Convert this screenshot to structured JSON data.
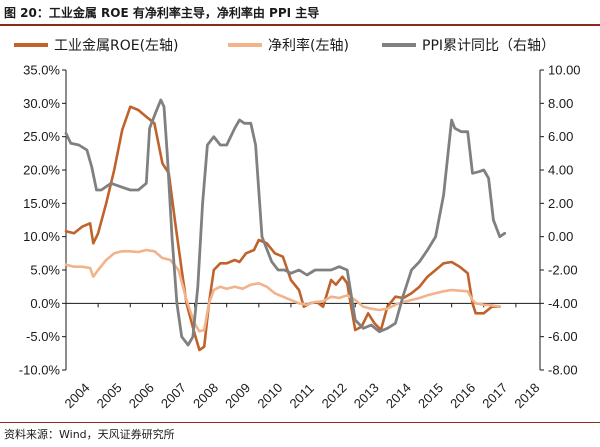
{
  "figure": {
    "title": "图 20：工业金属 ROE 有净利率主导，净利率由 PPI 主导",
    "source": "资料来源：Wind，天风证券研究所"
  },
  "chart_data": {
    "type": "line",
    "title": "",
    "legend_position": "top",
    "grid": false,
    "x_ticks": [
      "2004",
      "2005",
      "2006",
      "2007",
      "2008",
      "2009",
      "2010",
      "2011",
      "2012",
      "2013",
      "2014",
      "2015",
      "2016",
      "2017",
      "2018"
    ],
    "x_range": [
      2004.0,
      2018.75
    ],
    "y_left": {
      "ticks": [
        "35.0%",
        "30.0%",
        "25.0%",
        "20.0%",
        "15.0%",
        "10.0%",
        "5.0%",
        "0.0%",
        "-5.0%",
        "-10.0%"
      ],
      "range": [
        -10,
        35
      ]
    },
    "y_right": {
      "ticks": [
        "10.00",
        "8.00",
        "6.00",
        "4.00",
        "2.00",
        "0.00",
        "-2.00",
        "-4.00",
        "-6.00",
        "-8.00"
      ],
      "range": [
        -8,
        10
      ]
    },
    "series": [
      {
        "name": "工业金属ROE(左轴)",
        "axis": "left",
        "color": "#c0622b",
        "width": 2.6,
        "points": [
          [
            2004.0,
            10.8
          ],
          [
            2004.25,
            10.5
          ],
          [
            2004.5,
            11.5
          ],
          [
            2004.75,
            12.0
          ],
          [
            2004.85,
            9.0
          ],
          [
            2005.0,
            10.5
          ],
          [
            2005.25,
            15.0
          ],
          [
            2005.5,
            20.0
          ],
          [
            2005.75,
            26.0
          ],
          [
            2006.0,
            29.5
          ],
          [
            2006.25,
            29.0
          ],
          [
            2006.5,
            28.0
          ],
          [
            2006.75,
            27.0
          ],
          [
            2007.0,
            21.0
          ],
          [
            2007.2,
            19.5
          ],
          [
            2007.4,
            12.0
          ],
          [
            2007.6,
            5.0
          ],
          [
            2007.75,
            0.0
          ],
          [
            2008.0,
            -4.5
          ],
          [
            2008.15,
            -7.0
          ],
          [
            2008.3,
            -6.5
          ],
          [
            2008.45,
            0.0
          ],
          [
            2008.6,
            5.0
          ],
          [
            2008.8,
            6.0
          ],
          [
            2009.0,
            6.0
          ],
          [
            2009.25,
            6.5
          ],
          [
            2009.4,
            6.2
          ],
          [
            2009.6,
            7.5
          ],
          [
            2009.85,
            8.0
          ],
          [
            2010.0,
            9.5
          ],
          [
            2010.25,
            9.0
          ],
          [
            2010.5,
            7.5
          ],
          [
            2010.75,
            7.0
          ],
          [
            2011.0,
            3.5
          ],
          [
            2011.25,
            2.0
          ],
          [
            2011.4,
            -0.5
          ],
          [
            2011.6,
            0.0
          ],
          [
            2011.8,
            0.2
          ],
          [
            2012.0,
            -0.5
          ],
          [
            2012.25,
            3.5
          ],
          [
            2012.4,
            2.8
          ],
          [
            2012.6,
            4.0
          ],
          [
            2012.75,
            3.0
          ],
          [
            2013.0,
            -4.0
          ],
          [
            2013.2,
            -3.5
          ],
          [
            2013.4,
            -1.5
          ],
          [
            2013.6,
            -3.0
          ],
          [
            2013.8,
            -4.0
          ],
          [
            2014.0,
            -0.5
          ],
          [
            2014.25,
            1.0
          ],
          [
            2014.5,
            0.8
          ],
          [
            2014.75,
            1.5
          ],
          [
            2015.0,
            2.5
          ],
          [
            2015.25,
            4.0
          ],
          [
            2015.5,
            5.0
          ],
          [
            2015.75,
            6.0
          ],
          [
            2016.0,
            6.2
          ],
          [
            2016.25,
            5.5
          ],
          [
            2016.5,
            4.5
          ],
          [
            2016.65,
            0.0
          ],
          [
            2016.75,
            -1.5
          ],
          [
            2017.0,
            -1.5
          ],
          [
            2017.25,
            -0.5
          ],
          [
            2017.5,
            -0.5
          ]
        ]
      },
      {
        "name": "净利率(左轴)",
        "axis": "left",
        "color": "#f2b38c",
        "width": 2.6,
        "points": [
          [
            2004.0,
            5.8
          ],
          [
            2004.25,
            5.5
          ],
          [
            2004.5,
            5.5
          ],
          [
            2004.75,
            5.3
          ],
          [
            2004.85,
            4.0
          ],
          [
            2005.0,
            5.0
          ],
          [
            2005.25,
            6.5
          ],
          [
            2005.5,
            7.5
          ],
          [
            2005.75,
            7.8
          ],
          [
            2006.0,
            7.8
          ],
          [
            2006.25,
            7.7
          ],
          [
            2006.5,
            8.0
          ],
          [
            2006.75,
            7.8
          ],
          [
            2007.0,
            6.8
          ],
          [
            2007.25,
            6.5
          ],
          [
            2007.5,
            5.0
          ],
          [
            2007.75,
            0.5
          ],
          [
            2008.0,
            -3.0
          ],
          [
            2008.15,
            -4.2
          ],
          [
            2008.3,
            -4.0
          ],
          [
            2008.45,
            0.0
          ],
          [
            2008.6,
            2.0
          ],
          [
            2008.8,
            2.5
          ],
          [
            2009.0,
            2.2
          ],
          [
            2009.25,
            2.5
          ],
          [
            2009.5,
            2.2
          ],
          [
            2009.75,
            2.8
          ],
          [
            2010.0,
            3.0
          ],
          [
            2010.25,
            2.5
          ],
          [
            2010.5,
            1.5
          ],
          [
            2010.75,
            1.0
          ],
          [
            2011.0,
            0.5
          ],
          [
            2011.25,
            0.0
          ],
          [
            2011.5,
            -0.2
          ],
          [
            2011.75,
            0.2
          ],
          [
            2012.0,
            0.3
          ],
          [
            2012.25,
            1.0
          ],
          [
            2012.5,
            0.8
          ],
          [
            2012.75,
            1.2
          ],
          [
            2013.0,
            0.5
          ],
          [
            2013.25,
            -0.5
          ],
          [
            2013.5,
            -0.8
          ],
          [
            2013.75,
            -1.0
          ],
          [
            2014.0,
            -0.8
          ],
          [
            2014.25,
            -0.2
          ],
          [
            2014.5,
            0.2
          ],
          [
            2014.75,
            0.5
          ],
          [
            2015.0,
            0.8
          ],
          [
            2015.25,
            1.2
          ],
          [
            2015.5,
            1.5
          ],
          [
            2015.75,
            1.8
          ],
          [
            2016.0,
            2.0
          ],
          [
            2016.25,
            1.9
          ],
          [
            2016.5,
            1.8
          ],
          [
            2016.65,
            0.5
          ],
          [
            2016.75,
            0.0
          ],
          [
            2017.0,
            -0.2
          ],
          [
            2017.25,
            -0.3
          ],
          [
            2017.5,
            -0.5
          ]
        ]
      },
      {
        "name": "PPI累计同比（右轴）",
        "axis": "right",
        "color": "#808080",
        "width": 2.8,
        "points": [
          [
            2004.0,
            6.2
          ],
          [
            2004.15,
            5.6
          ],
          [
            2004.4,
            5.5
          ],
          [
            2004.65,
            5.2
          ],
          [
            2004.8,
            4.2
          ],
          [
            2004.95,
            2.8
          ],
          [
            2005.1,
            2.8
          ],
          [
            2005.4,
            3.2
          ],
          [
            2005.7,
            3.0
          ],
          [
            2006.0,
            2.8
          ],
          [
            2006.25,
            2.8
          ],
          [
            2006.5,
            3.2
          ],
          [
            2006.6,
            6.5
          ],
          [
            2006.8,
            7.5
          ],
          [
            2006.95,
            8.2
          ],
          [
            2007.05,
            7.8
          ],
          [
            2007.15,
            5.0
          ],
          [
            2007.3,
            0.0
          ],
          [
            2007.45,
            -4.0
          ],
          [
            2007.6,
            -6.0
          ],
          [
            2007.8,
            -6.5
          ],
          [
            2007.95,
            -6.0
          ],
          [
            2008.1,
            -3.0
          ],
          [
            2008.25,
            2.0
          ],
          [
            2008.4,
            5.5
          ],
          [
            2008.6,
            6.0
          ],
          [
            2008.8,
            5.5
          ],
          [
            2009.0,
            5.5
          ],
          [
            2009.25,
            6.5
          ],
          [
            2009.4,
            7.0
          ],
          [
            2009.55,
            6.8
          ],
          [
            2009.75,
            6.8
          ],
          [
            2009.9,
            5.5
          ],
          [
            2010.1,
            0.0
          ],
          [
            2010.4,
            -1.5
          ],
          [
            2010.6,
            -2.0
          ],
          [
            2010.8,
            -2.0
          ],
          [
            2011.0,
            -2.2
          ],
          [
            2011.25,
            -2.0
          ],
          [
            2011.5,
            -2.3
          ],
          [
            2011.75,
            -2.0
          ],
          [
            2012.0,
            -2.0
          ],
          [
            2012.25,
            -2.0
          ],
          [
            2012.5,
            -1.8
          ],
          [
            2012.75,
            -2.0
          ],
          [
            2013.0,
            -5.0
          ],
          [
            2013.25,
            -5.5
          ],
          [
            2013.5,
            -5.3
          ],
          [
            2013.75,
            -5.7
          ],
          [
            2014.0,
            -5.5
          ],
          [
            2014.25,
            -5.2
          ],
          [
            2014.5,
            -3.5
          ],
          [
            2014.75,
            -2.0
          ],
          [
            2015.0,
            -1.5
          ],
          [
            2015.25,
            -0.8
          ],
          [
            2015.5,
            0.0
          ],
          [
            2015.75,
            2.5
          ],
          [
            2016.0,
            7.0
          ],
          [
            2016.1,
            6.5
          ],
          [
            2016.3,
            6.3
          ],
          [
            2016.5,
            6.3
          ],
          [
            2016.65,
            3.8
          ],
          [
            2016.85,
            3.9
          ],
          [
            2017.0,
            4.0
          ],
          [
            2017.15,
            3.5
          ],
          [
            2017.3,
            1.0
          ],
          [
            2017.5,
            0.0
          ],
          [
            2017.65,
            0.2
          ]
        ]
      }
    ]
  }
}
